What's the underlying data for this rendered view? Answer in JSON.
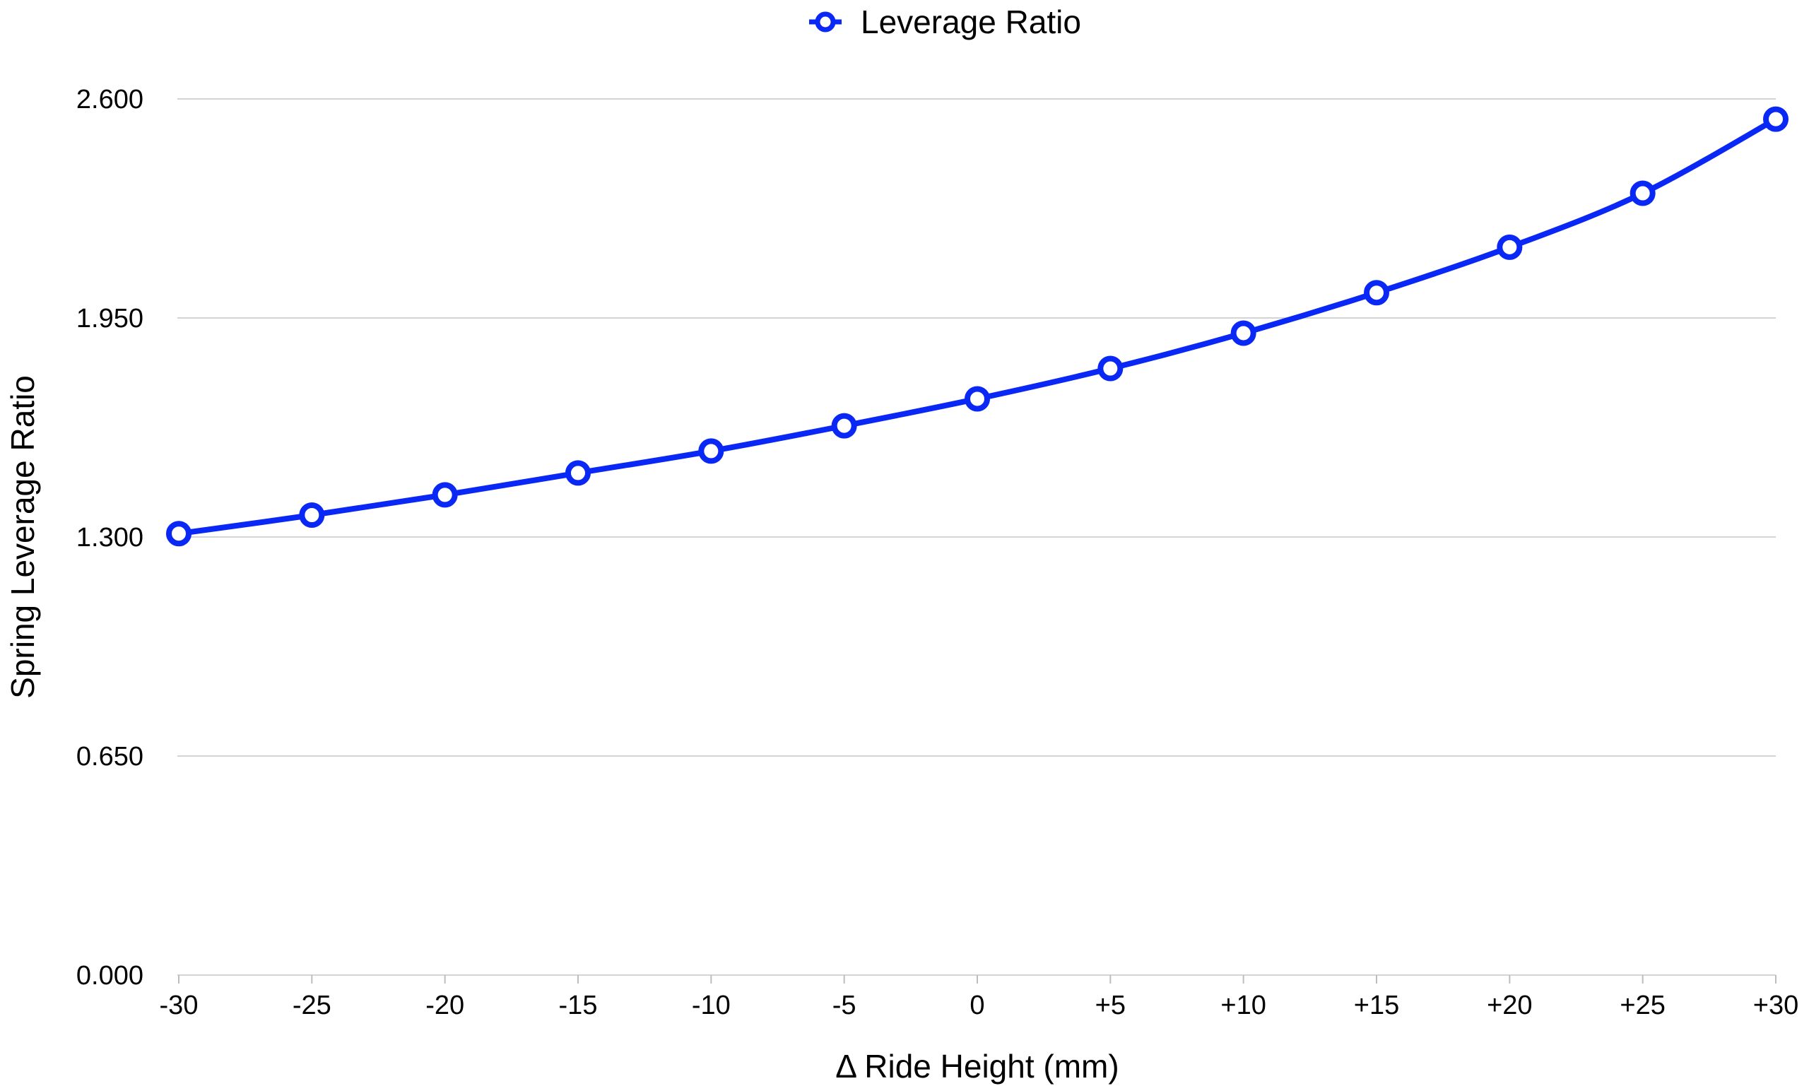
{
  "chart_data": {
    "type": "line",
    "title": "",
    "xlabel": "Δ Ride Height (mm)",
    "ylabel": "Spring Leverage Ratio",
    "categories": [
      "-30",
      "-25",
      "-20",
      "-15",
      "-10",
      "-5",
      "0",
      "+5",
      "+10",
      "+15",
      "+20",
      "+25",
      "+30"
    ],
    "yticks": [
      "0.000",
      "0.650",
      "1.300",
      "1.950",
      "2.600"
    ],
    "ylim": [
      0,
      2.6
    ],
    "grid": true,
    "legend_position": "top-center",
    "series": [
      {
        "name": "Leverage Ratio",
        "color": "#0a28f5",
        "marker": "open-circle",
        "values": [
          1.31,
          1.365,
          1.425,
          1.49,
          1.555,
          1.63,
          1.71,
          1.8,
          1.905,
          2.025,
          2.16,
          2.32,
          2.54
        ]
      }
    ]
  }
}
